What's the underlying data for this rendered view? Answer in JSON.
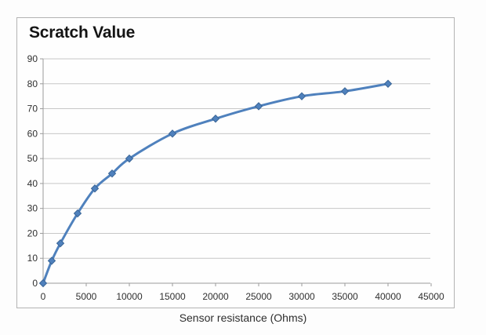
{
  "chart_data": {
    "type": "line",
    "title": "Scratch Value",
    "xlabel": "Sensor resistance (Ohms)",
    "ylabel": "",
    "series": [
      {
        "name": "Scratch Value",
        "x": [
          0,
          1000,
          2000,
          4000,
          6000,
          8000,
          10000,
          15000,
          20000,
          25000,
          30000,
          35000,
          40000
        ],
        "y": [
          0,
          9,
          16,
          28,
          38,
          44,
          50,
          60,
          66,
          71,
          75,
          77,
          80
        ]
      }
    ],
    "xlim": [
      0,
      45000
    ],
    "ylim": [
      0,
      90
    ],
    "xticks": [
      0,
      5000,
      10000,
      15000,
      20000,
      25000,
      30000,
      35000,
      40000,
      45000
    ],
    "yticks": [
      0,
      10,
      20,
      30,
      40,
      50,
      60,
      70,
      80,
      90
    ],
    "grid": "horizontal",
    "legend": "none",
    "marker": "diamond",
    "line_style": "smooth",
    "colors": {
      "line": "#4f81bd",
      "marker_fill": "#4f81bd",
      "marker_stroke": "#3a6596",
      "gridline": "#c7c7c7",
      "axis": "#9b9b9b",
      "tick_label": "#303030",
      "title": "#141414",
      "frame_border": "#b3b3b3",
      "background": "#fefefe"
    }
  }
}
